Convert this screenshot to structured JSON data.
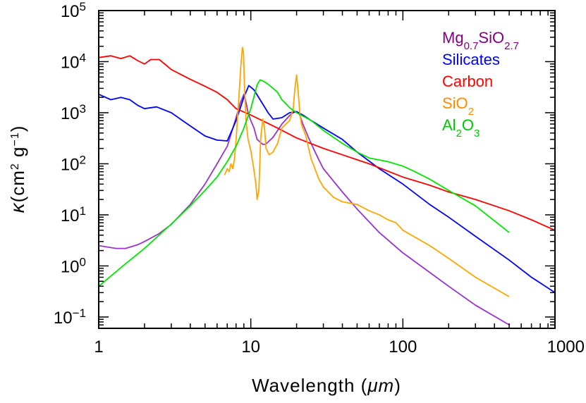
{
  "chart_data": {
    "type": "line",
    "title": "",
    "xlabel": "Wavelength (μm)",
    "ylabel": "κ(cm² g⁻¹)",
    "xscale": "log",
    "yscale": "log",
    "xlim": [
      1,
      1000
    ],
    "ylim": [
      0.06,
      100000
    ],
    "grid": false,
    "legend_position": "top-right",
    "x_ticks": [
      {
        "value": 1,
        "label": "1"
      },
      {
        "value": 10,
        "label": "10"
      },
      {
        "value": 100,
        "label": "100"
      },
      {
        "value": 1000,
        "label": "1000"
      }
    ],
    "y_ticks": [
      {
        "value": 0.1,
        "base": "10",
        "exp": "−1"
      },
      {
        "value": 1,
        "base": "10",
        "exp": "0"
      },
      {
        "value": 10,
        "base": "10",
        "exp": "1"
      },
      {
        "value": 100,
        "base": "10",
        "exp": "2"
      },
      {
        "value": 1000,
        "base": "10",
        "exp": "3"
      },
      {
        "value": 10000,
        "base": "10",
        "exp": "4"
      },
      {
        "value": 100000,
        "base": "10",
        "exp": "5"
      }
    ],
    "axis_label_parts": {
      "x_main": "Wavelength (",
      "x_unit": "μm",
      "x_close": ")",
      "y_kappa": "κ",
      "y_open": "(cm",
      "y_exp1": "2",
      "y_mid": " g",
      "y_exp2": "−1",
      "y_close": ")"
    },
    "series": [
      {
        "name": "Mg0.7SiO2.7",
        "legend": {
          "parts": [
            {
              "t": "Mg",
              "sub": false
            },
            {
              "t": "0.7",
              "sub": true
            },
            {
              "t": "SiO",
              "sub": false
            },
            {
              "t": "2.7",
              "sub": true
            }
          ]
        },
        "color": "#800080",
        "x": [
          1,
          1.3,
          1.5,
          1.8,
          2,
          2.5,
          3,
          4,
          5,
          6,
          7,
          8,
          8.5,
          9,
          9.3,
          9.6,
          10,
          10.5,
          11,
          12,
          12.5,
          14,
          16,
          18,
          19,
          20,
          20.5,
          21,
          22,
          24,
          26,
          28,
          30,
          40,
          50,
          70,
          100,
          200,
          300,
          500
        ],
        "y": [
          2.5,
          2.2,
          2.2,
          2.6,
          3.0,
          4.3,
          6.5,
          16,
          40,
          100,
          220,
          800,
          1500,
          2300,
          1600,
          1000,
          700,
          500,
          300,
          240,
          240,
          330,
          600,
          880,
          1000,
          1050,
          1000,
          900,
          600,
          320,
          190,
          120,
          80,
          28,
          13,
          4.5,
          1.8,
          0.4,
          0.17,
          0.07
        ],
        "line_color": "#9932CC"
      },
      {
        "name": "Silicates",
        "legend": {
          "parts": [
            {
              "t": "Silicates",
              "sub": false
            }
          ]
        },
        "color": "#0000FF",
        "line_color": "#0000FF",
        "x": [
          1,
          1.2,
          1.4,
          1.6,
          1.8,
          2,
          2.4,
          3,
          4,
          5,
          6,
          7,
          8,
          9,
          9.7,
          10.5,
          11.5,
          13,
          14,
          16,
          18,
          20,
          22,
          25,
          30,
          40,
          50,
          70,
          100,
          150,
          200,
          300,
          500,
          700,
          1000
        ],
        "y": [
          2300,
          1800,
          2000,
          1800,
          1400,
          1200,
          1300,
          1000,
          550,
          350,
          290,
          280,
          700,
          2000,
          3400,
          2800,
          1800,
          1000,
          750,
          800,
          1000,
          1050,
          900,
          700,
          500,
          300,
          170,
          80,
          40,
          16,
          9,
          3.8,
          1.3,
          0.6,
          0.3
        ]
      },
      {
        "name": "Carbon",
        "legend": {
          "parts": [
            {
              "t": "Carbon",
              "sub": false
            }
          ]
        },
        "color": "#FF0000",
        "line_color": "#FF0000",
        "x": [
          1,
          1.2,
          1.4,
          1.6,
          1.8,
          2,
          2.2,
          2.5,
          3,
          4,
          5,
          6,
          7,
          8,
          10,
          15,
          20,
          30,
          40,
          60,
          100,
          150,
          200,
          300,
          500,
          700,
          1000
        ],
        "y": [
          12000,
          13000,
          11500,
          13000,
          10500,
          9000,
          11000,
          11000,
          7000,
          4500,
          3300,
          2500,
          1800,
          1200,
          900,
          500,
          320,
          200,
          150,
          100,
          55,
          38,
          28,
          20,
          12,
          8,
          5
        ]
      },
      {
        "name": "SiO2",
        "legend": {
          "parts": [
            {
              "t": "SiO",
              "sub": false
            },
            {
              "t": "2",
              "sub": true
            }
          ]
        },
        "color": "#FF8C00",
        "line_color": "#FFA500",
        "x": [
          6.7,
          7,
          7.2,
          7.4,
          7.6,
          7.8,
          8,
          8.3,
          8.6,
          8.8,
          8.95,
          9.1,
          9.3,
          9.6,
          10,
          10.4,
          10.8,
          11,
          11.3,
          11.6,
          12,
          12.3,
          12.6,
          13.2,
          14,
          15,
          16,
          17,
          18,
          19,
          19.5,
          20,
          20.5,
          21,
          21.5,
          22,
          23,
          24,
          25,
          26,
          28,
          30,
          35,
          40,
          50,
          60,
          70,
          80,
          90,
          100,
          150,
          200,
          300,
          500
        ],
        "y": [
          60,
          80,
          70,
          100,
          80,
          120,
          300,
          1500,
          8000,
          19000,
          15000,
          3000,
          700,
          300,
          180,
          90,
          40,
          20,
          30,
          300,
          750,
          500,
          200,
          150,
          170,
          250,
          500,
          600,
          700,
          1200,
          3000,
          5500,
          2500,
          1000,
          600,
          500,
          350,
          200,
          120,
          90,
          50,
          35,
          22,
          18,
          16,
          12,
          10,
          8,
          7,
          5,
          2.5,
          1.4,
          0.6,
          0.25
        ]
      },
      {
        "name": "Al2O3",
        "legend": {
          "parts": [
            {
              "t": "Al",
              "sub": false
            },
            {
              "t": "2",
              "sub": true
            },
            {
              "t": "O",
              "sub": false
            },
            {
              "t": "3",
              "sub": true
            }
          ]
        },
        "color": "#00C800",
        "line_color": "#00E600",
        "x": [
          1,
          1.5,
          2,
          3,
          4,
          5,
          6,
          7,
          8,
          9,
          10,
          11,
          11.5,
          12,
          13,
          14,
          15,
          16,
          17,
          18,
          20,
          25,
          30,
          40,
          50,
          60,
          80,
          100,
          120,
          150,
          200,
          300,
          500
        ],
        "y": [
          0.4,
          1.1,
          2.2,
          6.6,
          15,
          30,
          55,
          110,
          220,
          500,
          1200,
          3500,
          4400,
          4200,
          3600,
          3000,
          2500,
          1800,
          1500,
          1250,
          1000,
          700,
          450,
          250,
          170,
          130,
          110,
          90,
          70,
          50,
          30,
          15,
          4.5
        ]
      }
    ]
  }
}
